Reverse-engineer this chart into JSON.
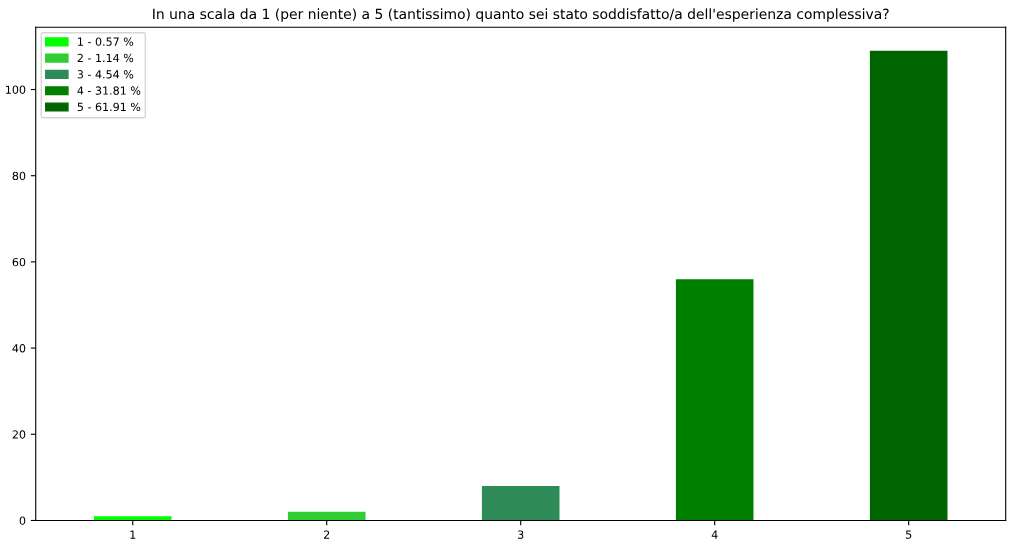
{
  "chart_data": {
    "type": "bar",
    "title": "In una scala da 1 (per niente) a 5 (tantissimo) quanto sei stato soddisfatto/a dell'esperienza complessiva?",
    "categories": [
      "1",
      "2",
      "3",
      "4",
      "5"
    ],
    "series": [
      {
        "name": "1 - 0.57 %",
        "color": "#00ff00",
        "values": [
          1,
          null,
          null,
          null,
          null
        ]
      },
      {
        "name": "2 - 1.14 %",
        "color": "#32cd32",
        "values": [
          null,
          2,
          null,
          null,
          null
        ]
      },
      {
        "name": "3 - 4.54 %",
        "color": "#2e8b57",
        "values": [
          null,
          null,
          8,
          null,
          null
        ]
      },
      {
        "name": "4 - 31.81 %",
        "color": "#008000",
        "values": [
          null,
          null,
          null,
          56,
          null
        ]
      },
      {
        "name": "5 - 61.91 %",
        "color": "#006400",
        "values": [
          null,
          null,
          null,
          null,
          109
        ]
      }
    ],
    "ylim": [
      0,
      114.45
    ],
    "yticks": [
      0,
      20,
      40,
      60,
      80,
      100
    ],
    "grid": false,
    "legend": "top left"
  }
}
